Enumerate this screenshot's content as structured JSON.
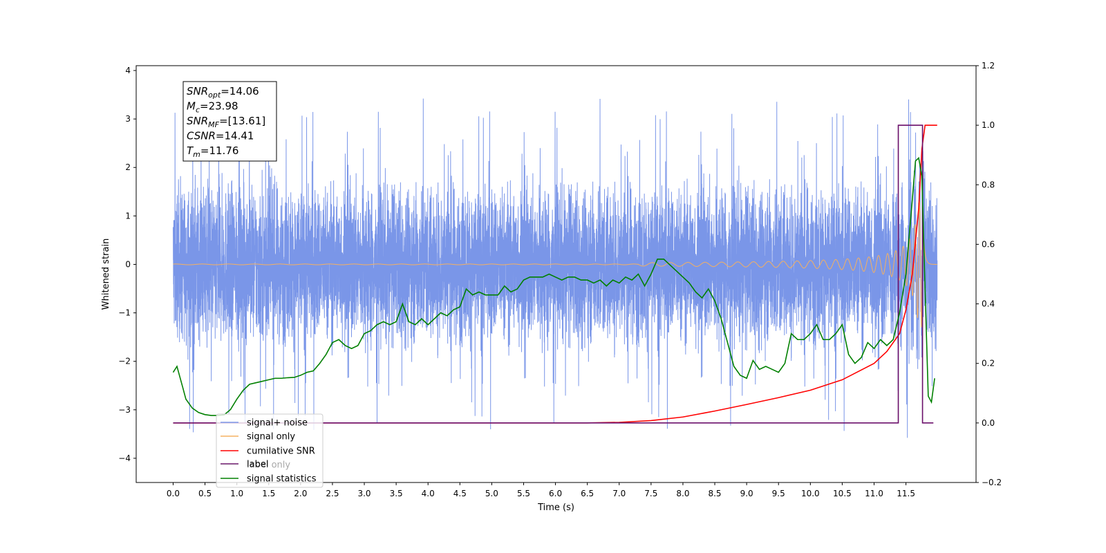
{
  "chart_data": {
    "type": "line",
    "xlabel": "Time (s)",
    "ylabel": "Whitened strain",
    "xlim": [
      -0.58,
      12.6
    ],
    "ylim_left": [
      -4.5,
      4.1
    ],
    "ylim_right": [
      -0.2,
      1.2
    ],
    "x_ticks": [
      0.0,
      0.5,
      1.0,
      1.5,
      2.0,
      2.5,
      3.0,
      3.5,
      4.0,
      4.5,
      5.0,
      5.5,
      6.0,
      6.5,
      7.0,
      7.5,
      8.0,
      8.5,
      9.0,
      9.5,
      10.0,
      10.5,
      11.0,
      11.5
    ],
    "x_tick_labels": [
      "0.0",
      "0.5",
      "1.0",
      "1.5",
      "2.0",
      "2.5",
      "3.0",
      "3.5",
      "4.0",
      "4.5",
      "5.0",
      "5.5",
      "6.0",
      "6.5",
      "7.0",
      "7.5",
      "8.0",
      "8.5",
      "9.0",
      "9.5",
      "10.0",
      "10.5",
      "11.0",
      "11.5"
    ],
    "y_left_ticks": [
      4,
      3,
      2,
      1,
      0,
      -1,
      -2,
      -3,
      -4
    ],
    "y_left_tick_labels": [
      "4",
      "3",
      "2",
      "1",
      "0",
      "−1",
      "−2",
      "−3",
      "−4"
    ],
    "y_right_ticks": [
      1.2,
      1.0,
      0.8,
      0.6,
      0.4,
      0.2,
      0.0,
      -0.2
    ],
    "y_right_tick_labels": [
      "1.2",
      "1.0",
      "0.8",
      "0.6",
      "0.4",
      "0.2",
      "0.0",
      "−0.2"
    ],
    "colors": {
      "signal_noise": "#7a96e8",
      "signal_only": "#f5b060",
      "cumulative_snr": "#ff0000",
      "label": "#6b0f6b",
      "label_only": "#b0b0b0",
      "signal_statistics": "#008000"
    },
    "series": [
      {
        "name": "signal+ noise",
        "axis": "left",
        "x_range": [
          0.0,
          11.99
        ],
        "envelope_upper_approx": 2.0,
        "envelope_lower_approx": -1.9,
        "peak_max": 3.57,
        "peak_min": -4.1
      },
      {
        "name": "signal only",
        "axis": "left",
        "x_range": [
          0.0,
          11.99
        ],
        "chirp_start": 7.3,
        "merger_time": 11.76,
        "peak_amplitude": 1.3
      },
      {
        "name": "cumilative SNR",
        "axis": "right",
        "x": [
          0.0,
          6.5,
          7.0,
          7.5,
          8.0,
          8.5,
          9.0,
          9.5,
          10.0,
          10.5,
          11.0,
          11.2,
          11.4,
          11.5,
          11.6,
          11.7,
          11.75,
          11.8,
          11.99
        ],
        "y": [
          0.0,
          0.0,
          0.002,
          0.008,
          0.02,
          0.04,
          0.062,
          0.085,
          0.11,
          0.145,
          0.2,
          0.24,
          0.3,
          0.38,
          0.5,
          0.72,
          0.92,
          1.0,
          1.0
        ]
      },
      {
        "name": "label",
        "axis": "right",
        "x": [
          0.0,
          11.38,
          11.38,
          11.76,
          11.76,
          11.93
        ],
        "y": [
          0.0,
          0.0,
          1.0,
          1.0,
          0.0,
          0.0
        ]
      },
      {
        "name": "label only",
        "axis": "right",
        "x": [
          0.0,
          11.38,
          11.38,
          11.76,
          11.76,
          11.93
        ],
        "y": [
          0.0,
          0.0,
          1.0,
          1.0,
          0.0,
          0.0
        ]
      },
      {
        "name": "signal statistics",
        "axis": "right",
        "x": [
          0.0,
          0.06,
          0.15,
          0.2,
          0.3,
          0.4,
          0.5,
          0.6,
          0.7,
          0.8,
          0.9,
          1.0,
          1.1,
          1.2,
          1.3,
          1.4,
          1.5,
          1.6,
          1.7,
          1.8,
          1.9,
          2.0,
          2.1,
          2.2,
          2.3,
          2.4,
          2.5,
          2.6,
          2.7,
          2.8,
          2.9,
          3.0,
          3.1,
          3.2,
          3.3,
          3.4,
          3.5,
          3.6,
          3.7,
          3.8,
          3.9,
          4.0,
          4.1,
          4.2,
          4.3,
          4.4,
          4.5,
          4.6,
          4.7,
          4.8,
          4.9,
          5.0,
          5.1,
          5.2,
          5.3,
          5.4,
          5.5,
          5.6,
          5.7,
          5.8,
          5.9,
          6.0,
          6.1,
          6.2,
          6.3,
          6.4,
          6.5,
          6.6,
          6.7,
          6.8,
          6.9,
          7.0,
          7.1,
          7.2,
          7.3,
          7.4,
          7.5,
          7.6,
          7.7,
          7.8,
          7.9,
          8.0,
          8.1,
          8.2,
          8.3,
          8.4,
          8.5,
          8.6,
          8.7,
          8.8,
          8.9,
          9.0,
          9.1,
          9.2,
          9.3,
          9.4,
          9.5,
          9.6,
          9.7,
          9.8,
          9.9,
          10.0,
          10.1,
          10.2,
          10.3,
          10.4,
          10.5,
          10.6,
          10.7,
          10.8,
          10.9,
          11.0,
          11.1,
          11.2,
          11.3,
          11.4,
          11.5,
          11.6,
          11.65,
          11.7,
          11.75,
          11.8,
          11.85,
          11.9,
          11.95
        ],
        "y": [
          0.17,
          0.19,
          0.12,
          0.08,
          0.05,
          0.035,
          0.028,
          0.025,
          0.025,
          0.027,
          0.045,
          0.08,
          0.11,
          0.13,
          0.135,
          0.14,
          0.145,
          0.15,
          0.15,
          0.152,
          0.153,
          0.16,
          0.17,
          0.175,
          0.2,
          0.23,
          0.27,
          0.28,
          0.26,
          0.25,
          0.26,
          0.3,
          0.31,
          0.33,
          0.34,
          0.33,
          0.34,
          0.4,
          0.34,
          0.33,
          0.35,
          0.33,
          0.35,
          0.37,
          0.36,
          0.38,
          0.39,
          0.45,
          0.43,
          0.44,
          0.43,
          0.43,
          0.43,
          0.46,
          0.44,
          0.45,
          0.48,
          0.49,
          0.49,
          0.49,
          0.5,
          0.49,
          0.48,
          0.49,
          0.49,
          0.48,
          0.48,
          0.47,
          0.48,
          0.46,
          0.48,
          0.47,
          0.49,
          0.48,
          0.5,
          0.46,
          0.5,
          0.55,
          0.55,
          0.53,
          0.51,
          0.49,
          0.47,
          0.44,
          0.42,
          0.45,
          0.41,
          0.35,
          0.27,
          0.19,
          0.16,
          0.15,
          0.21,
          0.18,
          0.19,
          0.18,
          0.17,
          0.2,
          0.3,
          0.28,
          0.28,
          0.3,
          0.33,
          0.28,
          0.28,
          0.3,
          0.33,
          0.23,
          0.2,
          0.22,
          0.27,
          0.25,
          0.28,
          0.26,
          0.28,
          0.37,
          0.5,
          0.75,
          0.88,
          0.89,
          0.83,
          0.45,
          0.09,
          0.07,
          0.15
        ]
      }
    ],
    "legend": {
      "location": "lower-left",
      "entries": [
        "signal+ noise",
        "signal only",
        "cumilative SNR",
        "label",
        "label only",
        "signal statistics"
      ]
    },
    "annotation_box": {
      "location": "upper-left",
      "lines": [
        {
          "base": "SNR",
          "sub": "opt",
          "value": "=14.06"
        },
        {
          "base": "M",
          "sub": "c",
          "value": "=23.98"
        },
        {
          "base": "SNR",
          "sub": "MF",
          "value": "=[13.61]"
        },
        {
          "base": "CSNR",
          "sub": "",
          "value": "=14.41"
        },
        {
          "base": "T",
          "sub": "m",
          "value": "=11.76"
        }
      ]
    },
    "grid": false
  }
}
